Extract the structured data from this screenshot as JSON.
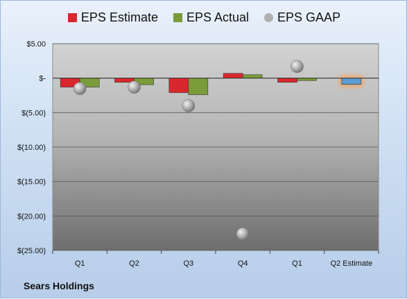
{
  "company": "Sears Holdings",
  "colors": {
    "estimate": "#d9272e",
    "actual": "#7a9c3a",
    "gaap": "#9c9c9c",
    "q2_estimate_bar": "#5b9bd5",
    "q2_estimate_glow": "#f4a460"
  },
  "chart_data": {
    "type": "bar",
    "categories": [
      "Q1",
      "Q2",
      "Q3",
      "Q4",
      "Q1",
      "Q2 Estimate"
    ],
    "series": [
      {
        "name": "EPS Estimate",
        "values": [
          -1.3,
          -0.6,
          -2.1,
          0.7,
          -0.6,
          -0.9
        ]
      },
      {
        "name": "EPS Actual",
        "values": [
          -1.3,
          -0.95,
          -2.4,
          0.5,
          -0.35,
          null
        ]
      },
      {
        "name": "EPS GAAP",
        "values": [
          -1.5,
          -1.3,
          -4.0,
          -22.6,
          1.7,
          null
        ]
      }
    ],
    "ylim": [
      -25,
      5
    ],
    "y_ticks": [
      5,
      0,
      -5,
      -10,
      -15,
      -20,
      -25
    ],
    "y_tick_labels": [
      "$5.00",
      "$-",
      "$(5.00)",
      "$(10.00)",
      "$(15.00)",
      "$(20.00)",
      "$(25.00)"
    ],
    "grid": true,
    "legend": "top"
  }
}
